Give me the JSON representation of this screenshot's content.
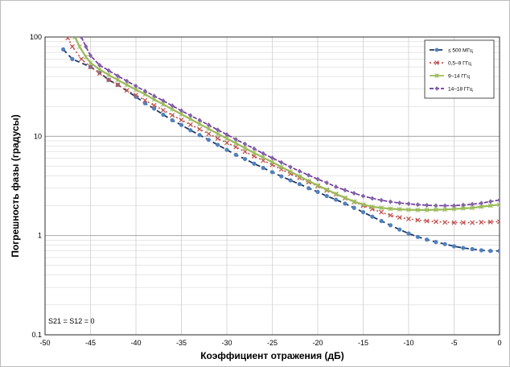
{
  "chart_data": {
    "type": "line",
    "xlabel": "Коэффициент отражения (дБ)",
    "ylabel": "Погрешность фазы (градусы)",
    "xlim": [
      -50,
      0
    ],
    "ylim": [
      0.1,
      100
    ],
    "yscale": "log",
    "x_ticks": [
      -50,
      -45,
      -40,
      -35,
      -30,
      -25,
      -20,
      -15,
      -10,
      -5,
      0
    ],
    "x_tick_labels": [
      "-50",
      "-45",
      "-40",
      "-35",
      "-30",
      "-25",
      "-20",
      "-15",
      "-10",
      "-5",
      "0"
    ],
    "y_ticks": [
      0.1,
      1,
      10,
      100
    ],
    "y_tick_labels": [
      "0.1",
      "1",
      "10",
      "100"
    ],
    "grid": true,
    "legend_position": "top-right",
    "annotation": "S21 = S12 = 0",
    "series": [
      {
        "name": "≤ 500 МГц",
        "color": "#1f3864",
        "marker": "circle",
        "marker_color": "#4f81bd",
        "x": [
          -48,
          -47,
          -45,
          -44,
          -43,
          -42,
          -40,
          -39,
          -38,
          -37,
          -36,
          -35,
          -34,
          -33,
          -32,
          -31,
          -30,
          -29,
          -28,
          -27,
          -26,
          -25,
          -24,
          -23,
          -22,
          -21,
          -20,
          -19,
          -18,
          -17,
          -16,
          -15,
          -14,
          -13,
          -12,
          -11,
          -10,
          -9,
          -8,
          -7,
          -6,
          -5,
          -4,
          -3,
          -2,
          -1,
          0
        ],
        "y": [
          75,
          60,
          50,
          44,
          37,
          33,
          25,
          21.5,
          19,
          16.5,
          14.5,
          13,
          11.5,
          10.3,
          9.2,
          8.2,
          7.3,
          6.5,
          5.9,
          5.3,
          4.8,
          4.35,
          3.95,
          3.6,
          3.3,
          3.0,
          2.75,
          2.5,
          2.3,
          2.1,
          1.9,
          1.72,
          1.55,
          1.4,
          1.27,
          1.15,
          1.05,
          0.97,
          0.91,
          0.86,
          0.82,
          0.78,
          0.75,
          0.73,
          0.71,
          0.7,
          0.7
        ]
      },
      {
        "name": "0,5–9 ГГц",
        "color": "#c0504d",
        "marker": "x",
        "marker_color": "#c0504d",
        "x": [
          -47.5,
          -47,
          -46,
          -45,
          -44,
          -43,
          -42,
          -41,
          -40,
          -39,
          -38,
          -37,
          -36,
          -35,
          -34,
          -33,
          -32,
          -31,
          -30,
          -29,
          -28,
          -27,
          -26,
          -25,
          -24,
          -23,
          -22,
          -21,
          -20,
          -19,
          -18,
          -17,
          -16,
          -15,
          -14,
          -13,
          -12,
          -11,
          -10,
          -9,
          -8,
          -7,
          -6,
          -5,
          -4,
          -3,
          -2,
          -1,
          0
        ],
        "y": [
          98,
          80,
          60,
          50,
          43,
          37,
          33,
          29,
          26,
          23,
          20.5,
          18.3,
          16.3,
          14.6,
          13.1,
          11.8,
          10.6,
          9.5,
          8.6,
          7.8,
          7.0,
          6.3,
          5.7,
          5.15,
          4.65,
          4.2,
          3.8,
          3.45,
          3.15,
          2.85,
          2.6,
          2.38,
          2.18,
          2.0,
          1.85,
          1.72,
          1.6,
          1.52,
          1.47,
          1.43,
          1.4,
          1.38,
          1.36,
          1.35,
          1.35,
          1.35,
          1.36,
          1.37,
          1.38
        ]
      },
      {
        "name": "9–14 ГГц",
        "color": "#9bbb59",
        "marker": "star",
        "marker_color": "#9bbb59",
        "x": [
          -46.7,
          -46.2,
          -45.5,
          -45,
          -44,
          -43,
          -42,
          -41,
          -40,
          -39,
          -38,
          -37,
          -36,
          -35,
          -34,
          -33,
          -32,
          -31,
          -30,
          -29,
          -28,
          -27,
          -26,
          -25,
          -24,
          -23,
          -22,
          -21,
          -20,
          -19,
          -18,
          -17,
          -16,
          -15,
          -14,
          -13,
          -12,
          -11,
          -10,
          -9,
          -8,
          -7,
          -6,
          -5,
          -4,
          -3,
          -2,
          -1,
          0
        ],
        "y": [
          100,
          80,
          63,
          55,
          47,
          41.5,
          37,
          33,
          29.5,
          26.5,
          23.5,
          21,
          18.7,
          16.7,
          14.9,
          13.3,
          11.9,
          10.6,
          9.5,
          8.5,
          7.6,
          6.8,
          6.1,
          5.5,
          4.9,
          4.4,
          3.95,
          3.55,
          3.2,
          2.9,
          2.63,
          2.4,
          2.2,
          2.05,
          1.95,
          1.9,
          1.86,
          1.84,
          1.82,
          1.81,
          1.81,
          1.82,
          1.83,
          1.85,
          1.88,
          1.9,
          1.95,
          2.0,
          2.05
        ]
      },
      {
        "name": "14–18 ГГц",
        "color": "#7030a0",
        "marker": "diamond",
        "marker_color": "#8064a2",
        "x": [
          -46,
          -45.5,
          -45,
          -44,
          -43,
          -42,
          -41,
          -40,
          -39,
          -38,
          -37,
          -36,
          -35,
          -34,
          -33,
          -32,
          -31,
          -30,
          -29,
          -28,
          -27,
          -26,
          -25,
          -24,
          -23,
          -22,
          -21,
          -20,
          -19,
          -18,
          -17,
          -16,
          -15,
          -14,
          -13,
          -12,
          -11,
          -10,
          -9,
          -8,
          -7,
          -6,
          -5,
          -4,
          -3,
          -2,
          -1,
          0
        ],
        "y": [
          100,
          80,
          65,
          52,
          46,
          40.5,
          36,
          32,
          28.5,
          25.5,
          22.8,
          20.3,
          18.1,
          16.2,
          14.5,
          13.0,
          11.6,
          10.4,
          9.3,
          8.35,
          7.5,
          6.7,
          6.05,
          5.45,
          4.9,
          4.45,
          4.05,
          3.7,
          3.4,
          3.1,
          2.87,
          2.67,
          2.5,
          2.37,
          2.27,
          2.19,
          2.13,
          2.09,
          2.05,
          2.02,
          2.0,
          2.0,
          2.0,
          2.03,
          2.07,
          2.12,
          2.2,
          2.28
        ]
      }
    ]
  }
}
